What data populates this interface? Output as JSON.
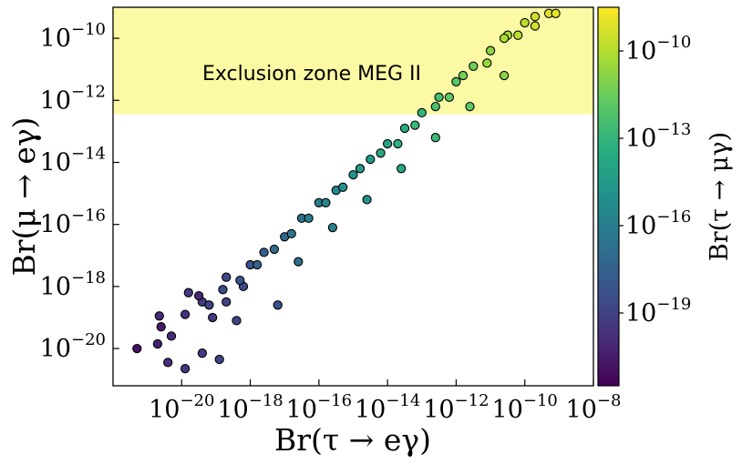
{
  "chart_data": {
    "type": "scatter",
    "title": "",
    "xlabel": "Br(τ → eγ)",
    "ylabel": "Br(μ → eγ)",
    "colorbar_label": "Br(τ → μγ)",
    "x_scale": "log",
    "y_scale": "log",
    "color_scale": "log",
    "xlim_log10": [
      -22,
      -8
    ],
    "ylim_log10": [
      -21.2,
      -9.0
    ],
    "color_lim_log10": [
      -21.5,
      -8.5
    ],
    "x_ticks": [
      {
        "exp": -20,
        "base": "10",
        "power": "−20"
      },
      {
        "exp": -18,
        "base": "10",
        "power": "−18"
      },
      {
        "exp": -16,
        "base": "10",
        "power": "−16"
      },
      {
        "exp": -14,
        "base": "10",
        "power": "−14"
      },
      {
        "exp": -12,
        "base": "10",
        "power": "−12"
      },
      {
        "exp": -10,
        "base": "10",
        "power": "−10"
      },
      {
        "exp": -8,
        "base": "10",
        "power": "−8"
      }
    ],
    "y_ticks": [
      {
        "exp": -20,
        "base": "10",
        "power": "−20"
      },
      {
        "exp": -18,
        "base": "10",
        "power": "−18"
      },
      {
        "exp": -16,
        "base": "10",
        "power": "−16"
      },
      {
        "exp": -14,
        "base": "10",
        "power": "−14"
      },
      {
        "exp": -12,
        "base": "10",
        "power": "−12"
      },
      {
        "exp": -10,
        "base": "10",
        "power": "−10"
      }
    ],
    "colorbar_ticks": [
      {
        "exp": -10,
        "base": "10",
        "power": "−10"
      },
      {
        "exp": -13,
        "base": "10",
        "power": "−13"
      },
      {
        "exp": -16,
        "base": "10",
        "power": "−16"
      },
      {
        "exp": -19,
        "base": "10",
        "power": "−19"
      }
    ],
    "exclusion_region": {
      "label": "Exclusion zone MEG II",
      "y_min_log10": -12.45,
      "color": "#fbf9a3"
    },
    "colormap": "viridis",
    "points_log10": [
      [
        -21.3,
        -20.0,
        -21.0
      ],
      [
        -20.7,
        -19.85,
        -20.3
      ],
      [
        -20.6,
        -19.3,
        -20.6
      ],
      [
        -20.65,
        -18.95,
        -20.0
      ],
      [
        -20.3,
        -19.6,
        -20.0
      ],
      [
        -20.4,
        -20.45,
        -19.8
      ],
      [
        -19.9,
        -20.65,
        -19.4
      ],
      [
        -19.4,
        -20.15,
        -19.3
      ],
      [
        -18.9,
        -20.35,
        -19.0
      ],
      [
        -19.8,
        -18.2,
        -19.4
      ],
      [
        -19.4,
        -18.5,
        -19.2
      ],
      [
        -18.4,
        -19.1,
        -18.8
      ],
      [
        -17.2,
        -18.6,
        -18.2
      ],
      [
        -19.9,
        -18.9,
        -19.7
      ],
      [
        -19.5,
        -18.3,
        -20.1
      ],
      [
        -19.1,
        -19.0,
        -19.5
      ],
      [
        -18.7,
        -18.5,
        -19.0
      ],
      [
        -18.2,
        -18.0,
        -18.5
      ],
      [
        -18.7,
        -17.7,
        -18.6
      ],
      [
        -18.0,
        -17.3,
        -18.1
      ],
      [
        -17.6,
        -16.9,
        -17.7
      ],
      [
        -17.0,
        -16.4,
        -17.2
      ],
      [
        -16.5,
        -15.8,
        -16.6
      ],
      [
        -16.0,
        -15.3,
        -16.0
      ],
      [
        -15.5,
        -14.9,
        -15.5
      ],
      [
        -15.0,
        -14.4,
        -15.0
      ],
      [
        -14.5,
        -13.9,
        -14.5
      ],
      [
        -14.0,
        -13.4,
        -14.0
      ],
      [
        -13.5,
        -12.9,
        -13.5
      ],
      [
        -13.0,
        -12.4,
        -13.0
      ],
      [
        -12.5,
        -11.9,
        -12.5
      ],
      [
        -12.0,
        -11.4,
        -12.0
      ],
      [
        -11.5,
        -10.9,
        -11.4
      ],
      [
        -11.0,
        -10.4,
        -10.9
      ],
      [
        -10.5,
        -9.9,
        -10.3
      ],
      [
        -10.0,
        -9.5,
        -9.8
      ],
      [
        -9.7,
        -9.3,
        -9.4
      ],
      [
        -9.3,
        -9.2,
        -9.1
      ],
      [
        -9.1,
        -9.2,
        -9.0
      ],
      [
        -9.7,
        -9.6,
        -9.5
      ],
      [
        -10.2,
        -9.9,
        -9.9
      ],
      [
        -10.6,
        -10.0,
        -10.1
      ],
      [
        -11.1,
        -10.8,
        -10.6
      ],
      [
        -11.8,
        -11.2,
        -11.3
      ],
      [
        -12.2,
        -11.9,
        -11.8
      ],
      [
        -12.6,
        -12.2,
        -12.3
      ],
      [
        -13.2,
        -12.8,
        -12.8
      ],
      [
        -13.7,
        -13.4,
        -13.2
      ],
      [
        -14.2,
        -13.7,
        -13.8
      ],
      [
        -14.8,
        -14.2,
        -14.4
      ],
      [
        -15.3,
        -14.8,
        -14.9
      ],
      [
        -15.8,
        -15.3,
        -15.5
      ],
      [
        -16.3,
        -15.8,
        -16.0
      ],
      [
        -16.8,
        -16.3,
        -16.5
      ],
      [
        -17.3,
        -16.8,
        -17.0
      ],
      [
        -17.8,
        -17.3,
        -17.5
      ],
      [
        -18.3,
        -17.8,
        -18.0
      ],
      [
        -18.8,
        -18.1,
        -18.5
      ],
      [
        -19.2,
        -18.6,
        -18.9
      ],
      [
        -16.6,
        -17.2,
        -16.8
      ],
      [
        -15.6,
        -16.1,
        -15.9
      ],
      [
        -14.6,
        -15.2,
        -14.9
      ],
      [
        -13.6,
        -14.2,
        -13.9
      ],
      [
        -12.6,
        -13.2,
        -12.8
      ],
      [
        -11.6,
        -12.2,
        -11.8
      ],
      [
        -10.6,
        -11.2,
        -10.8
      ]
    ]
  }
}
